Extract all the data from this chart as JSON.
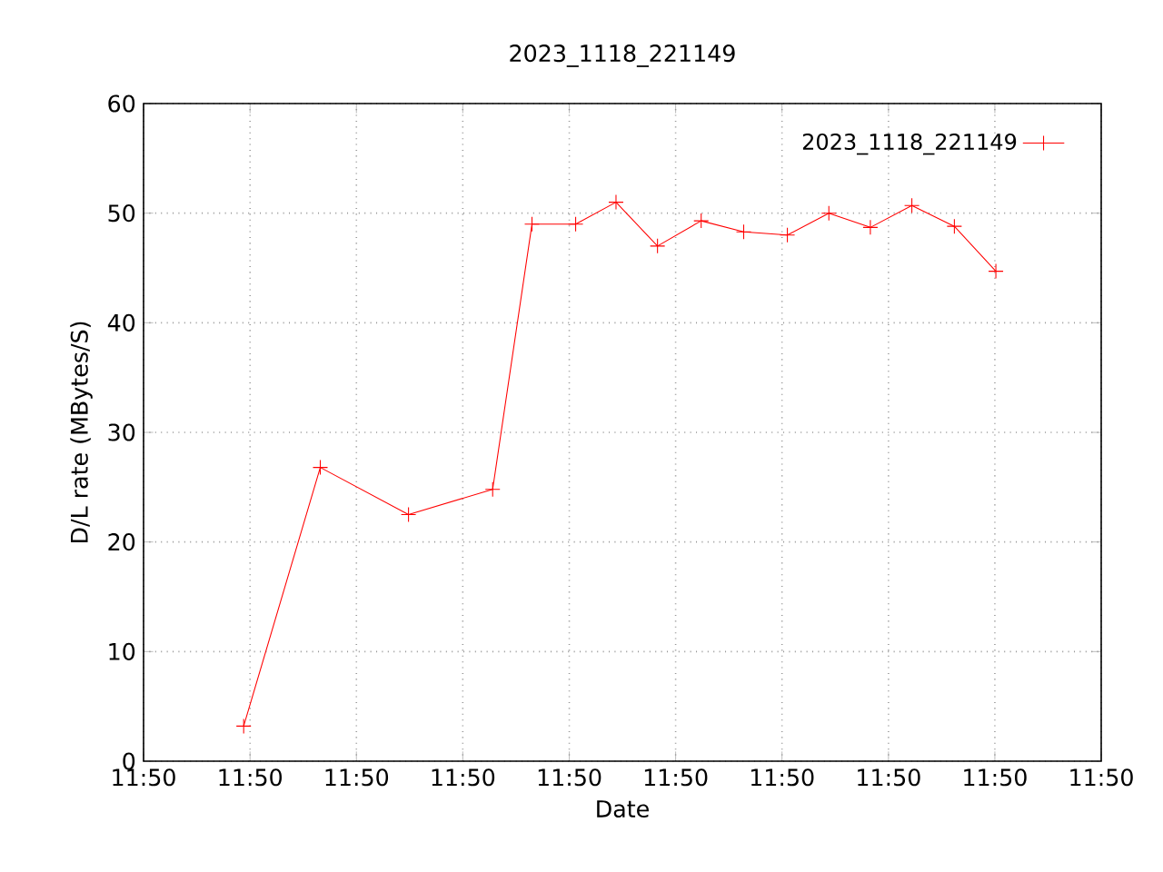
{
  "chart_data": {
    "type": "line",
    "title": "2023_1118_221149",
    "xlabel": "Date",
    "ylabel": "D/L rate (MBytes/S)",
    "x": [
      11.834117,
      11.834717,
      11.835408,
      11.836067,
      11.836375,
      11.836717,
      11.837033,
      11.837358,
      11.8377,
      11.838033,
      11.838375,
      11.8387,
      11.839025,
      11.83935,
      11.839683,
      11.840008
    ],
    "series": [
      {
        "name": "2023_1118_221149",
        "color": "#ff0000",
        "values": [
          3.2,
          26.8,
          22.5,
          24.8,
          49,
          49,
          51,
          47,
          49.3,
          48.3,
          48,
          50,
          48.7,
          50.7,
          48.8,
          44.7
        ]
      }
    ],
    "xlim": [
      11.833333,
      11.840833
    ],
    "xticks": [
      {
        "value": 11.833333,
        "label": "11:50"
      },
      {
        "value": 11.834167,
        "label": "11:50"
      },
      {
        "value": 11.835,
        "label": "11:50"
      },
      {
        "value": 11.835833,
        "label": "11:50"
      },
      {
        "value": 11.836667,
        "label": "11:50"
      },
      {
        "value": 11.8375,
        "label": "11:50"
      },
      {
        "value": 11.838333,
        "label": "11:50"
      },
      {
        "value": 11.839167,
        "label": "11:50"
      },
      {
        "value": 11.84,
        "label": "11:50"
      },
      {
        "value": 11.840833,
        "label": "11:50"
      }
    ],
    "ylim": [
      0,
      60
    ],
    "yticks": [
      0,
      10,
      20,
      30,
      40,
      50,
      60
    ],
    "grid": true,
    "legend": "top right",
    "marker": "cross",
    "line_style": "solid"
  }
}
